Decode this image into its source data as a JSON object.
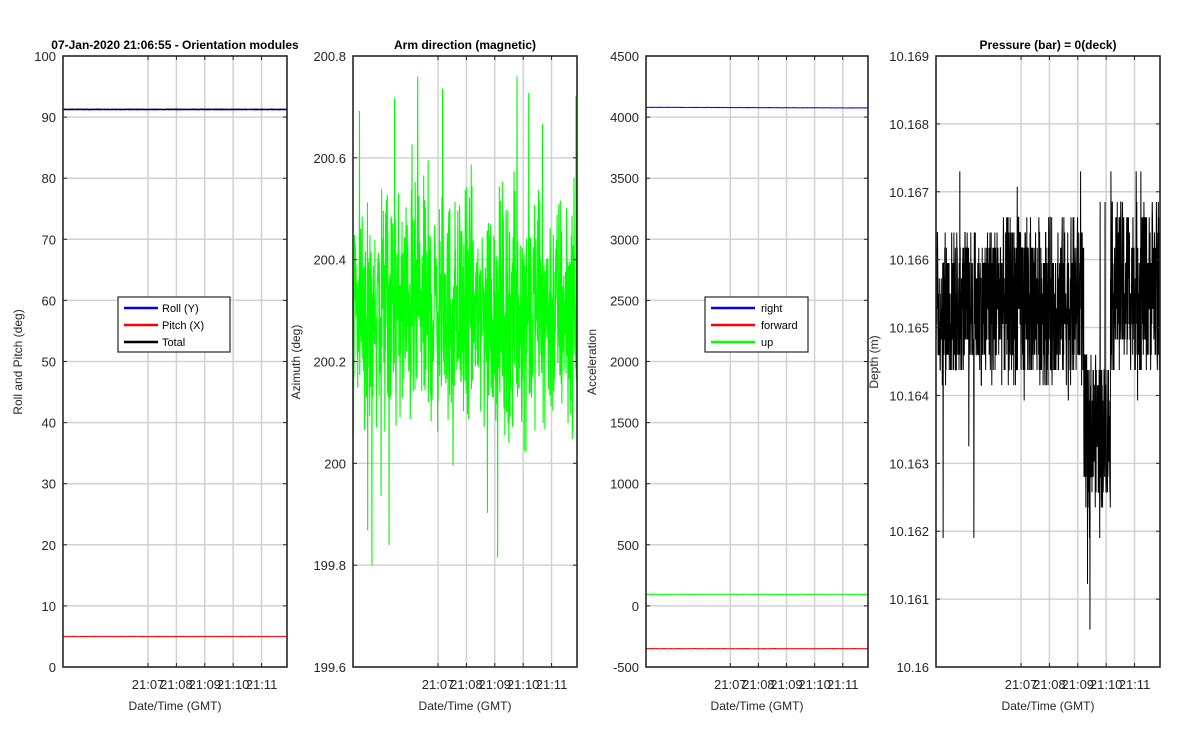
{
  "chart_data": [
    {
      "type": "line",
      "title": "07-Jan-2020 21:06:55 - Orientation modules",
      "xlabel": "Date/Time (GMT)",
      "ylabel": "Roll and Pitch (deg)",
      "xlim": [
        21.0667,
        21.1983
      ],
      "ylim": [
        0,
        100
      ],
      "x_ticks": [
        "21:07",
        "21:08",
        "21:09",
        "21:10",
        "21:11"
      ],
      "y_ticks": [
        "0",
        "10",
        "20",
        "30",
        "40",
        "50",
        "60",
        "70",
        "80",
        "90",
        "100"
      ],
      "grid": true,
      "legend": "center",
      "series": [
        {
          "name": "Roll (Y)",
          "color": "#0000ff",
          "values": [
            91.2,
            91.2
          ]
        },
        {
          "name": "Pitch (X)",
          "color": "#ff0000",
          "values": [
            5.0,
            5.0
          ]
        },
        {
          "name": "Total",
          "color": "#000000",
          "values": [
            91.3,
            91.3
          ]
        }
      ]
    },
    {
      "type": "line",
      "title": "Arm direction (magnetic)",
      "xlabel": "Date/Time (GMT)",
      "ylabel": "Azimuth (deg)",
      "xlim": [
        21.0667,
        21.1983
      ],
      "ylim": [
        199.6,
        200.8
      ],
      "x_ticks": [
        "21:07",
        "21:08",
        "21:09",
        "21:10",
        "21:11"
      ],
      "y_ticks": [
        "199.6",
        "199.8",
        "200",
        "200.2",
        "200.4",
        "200.6",
        "200.8"
      ],
      "grid": true,
      "series": [
        {
          "color": "#00ff00",
          "mean": 200.3,
          "range": [
            199.66,
            200.76
          ]
        }
      ]
    },
    {
      "type": "line",
      "title": "",
      "xlabel": "Date/Time (GMT)",
      "ylabel": "Acceleration",
      "xlim": [
        21.0667,
        21.1983
      ],
      "ylim": [
        -500,
        4500
      ],
      "x_ticks": [
        "21:07",
        "21:08",
        "21:09",
        "21:10",
        "21:11"
      ],
      "y_ticks": [
        "-500",
        "0",
        "500",
        "1000",
        "1500",
        "2000",
        "2500",
        "3000",
        "3500",
        "4000",
        "4500"
      ],
      "grid": true,
      "legend": "center",
      "series": [
        {
          "name": "right",
          "color": "#0000ff",
          "values": [
            4080,
            4075
          ]
        },
        {
          "name": "forward",
          "color": "#ff0000",
          "values": [
            -350,
            -350
          ]
        },
        {
          "name": "up",
          "color": "#00ff00",
          "values": [
            95,
            95
          ]
        }
      ]
    },
    {
      "type": "line",
      "title": "Pressure (bar) = 0(deck)",
      "xlabel": "Date/Time (GMT)",
      "ylabel": "Depth (m)",
      "xlim": [
        21.0667,
        21.1983
      ],
      "ylim": [
        10.16,
        10.169
      ],
      "x_ticks": [
        "21:07",
        "21:08",
        "21:09",
        "21:10",
        "21:11"
      ],
      "y_ticks": [
        "10.16",
        "10.161",
        "10.162",
        "10.163",
        "10.164",
        "10.165",
        "10.166",
        "10.167",
        "10.168",
        "10.169"
      ],
      "grid": true,
      "series": [
        {
          "color": "#000000",
          "range": [
            10.1604,
            10.1685
          ]
        }
      ]
    }
  ]
}
